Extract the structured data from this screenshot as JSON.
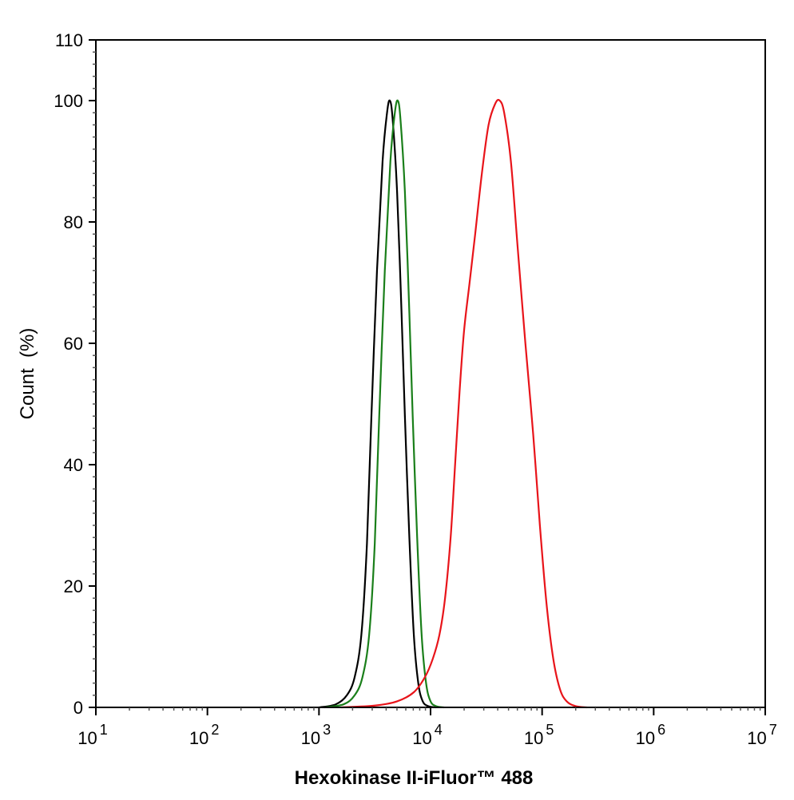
{
  "chart_data": {
    "type": "line",
    "title": "",
    "xlabel": "Hexokinase II-iFluor™ 488",
    "ylabel": "Count  (%)",
    "xscale": "log",
    "xlim_log10": [
      1,
      7
    ],
    "ylim": [
      0,
      110
    ],
    "x_ticks": [
      {
        "base": "10",
        "exp": "1"
      },
      {
        "base": "10",
        "exp": "2"
      },
      {
        "base": "10",
        "exp": "3"
      },
      {
        "base": "10",
        "exp": "4"
      },
      {
        "base": "10",
        "exp": "5"
      },
      {
        "base": "10",
        "exp": "6"
      },
      {
        "base": "10",
        "exp": "7"
      }
    ],
    "y_ticks": [
      "0",
      "20",
      "40",
      "60",
      "80",
      "100",
      "110"
    ],
    "y_tick_values": [
      0,
      20,
      40,
      60,
      80,
      100,
      110
    ],
    "grid": false,
    "legend": "none",
    "series": [
      {
        "name": "black",
        "color": "#000000",
        "points_log10x_y": [
          [
            3.0,
            0
          ],
          [
            3.15,
            0.5
          ],
          [
            3.25,
            2
          ],
          [
            3.32,
            5
          ],
          [
            3.38,
            12
          ],
          [
            3.43,
            27
          ],
          [
            3.47,
            48
          ],
          [
            3.52,
            72
          ],
          [
            3.57,
            90
          ],
          [
            3.61,
            98
          ],
          [
            3.635,
            100
          ],
          [
            3.66,
            97
          ],
          [
            3.7,
            85
          ],
          [
            3.74,
            65
          ],
          [
            3.77,
            48
          ],
          [
            3.81,
            28
          ],
          [
            3.85,
            12
          ],
          [
            3.89,
            4
          ],
          [
            3.93,
            1
          ],
          [
            3.98,
            0.2
          ],
          [
            4.05,
            0
          ]
        ]
      },
      {
        "name": "green",
        "color": "#1a7f1a",
        "points_log10x_y": [
          [
            3.05,
            0
          ],
          [
            3.22,
            0.5
          ],
          [
            3.32,
            2
          ],
          [
            3.39,
            5
          ],
          [
            3.45,
            12
          ],
          [
            3.5,
            27
          ],
          [
            3.54,
            48
          ],
          [
            3.59,
            72
          ],
          [
            3.64,
            90
          ],
          [
            3.68,
            98
          ],
          [
            3.706,
            100
          ],
          [
            3.73,
            97
          ],
          [
            3.77,
            85
          ],
          [
            3.81,
            65
          ],
          [
            3.84,
            48
          ],
          [
            3.88,
            28
          ],
          [
            3.92,
            12
          ],
          [
            3.96,
            4
          ],
          [
            4.0,
            1
          ],
          [
            4.05,
            0.2
          ],
          [
            4.12,
            0
          ]
        ]
      },
      {
        "name": "red",
        "color": "#e8141a",
        "points_log10x_y": [
          [
            3.2,
            0
          ],
          [
            3.5,
            0.3
          ],
          [
            3.7,
            1
          ],
          [
            3.85,
            2.5
          ],
          [
            3.95,
            5
          ],
          [
            4.02,
            8
          ],
          [
            4.08,
            12
          ],
          [
            4.13,
            18
          ],
          [
            4.18,
            28
          ],
          [
            4.22,
            40
          ],
          [
            4.26,
            52
          ],
          [
            4.3,
            62
          ],
          [
            4.35,
            70
          ],
          [
            4.4,
            78
          ],
          [
            4.46,
            88
          ],
          [
            4.52,
            96
          ],
          [
            4.58,
            99.5
          ],
          [
            4.62,
            100
          ],
          [
            4.66,
            98
          ],
          [
            4.72,
            90
          ],
          [
            4.78,
            76
          ],
          [
            4.85,
            60
          ],
          [
            4.92,
            45
          ],
          [
            4.98,
            30
          ],
          [
            5.04,
            17
          ],
          [
            5.1,
            8
          ],
          [
            5.16,
            3
          ],
          [
            5.22,
            1
          ],
          [
            5.3,
            0.2
          ],
          [
            5.4,
            0
          ]
        ]
      }
    ]
  }
}
